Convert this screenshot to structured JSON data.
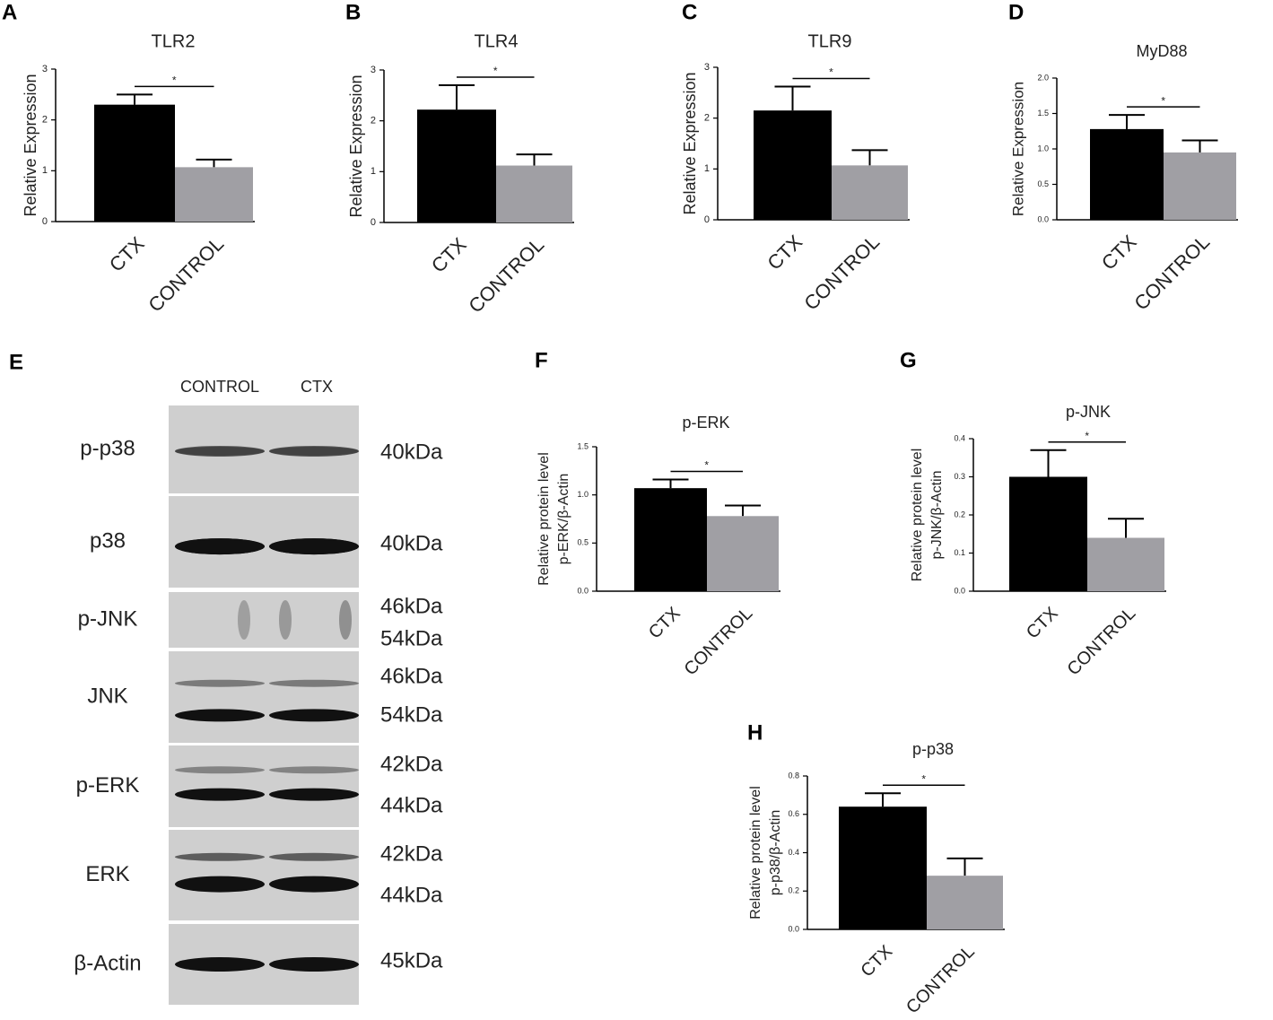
{
  "chart_data": [
    {
      "type": "bar",
      "panel": "A",
      "title": "TLR2",
      "ylabel": "Relative Expression",
      "categories": [
        "CTX",
        "CONTROL"
      ],
      "values": [
        2.3,
        1.07
      ],
      "errors": [
        0.2,
        0.15
      ],
      "colors": [
        "#000000",
        "#a09fa4"
      ],
      "annotation": "*",
      "ylim": [
        0,
        3
      ],
      "yticks": [
        0,
        1,
        2,
        3
      ]
    },
    {
      "type": "bar",
      "panel": "B",
      "title": "TLR4",
      "ylabel": "Relative Expression",
      "categories": [
        "CTX",
        "CONTROL"
      ],
      "values": [
        2.22,
        1.12
      ],
      "errors": [
        0.48,
        0.22
      ],
      "colors": [
        "#000000",
        "#a09fa4"
      ],
      "annotation": "*",
      "ylim": [
        0,
        3
      ],
      "yticks": [
        0,
        1,
        2,
        3
      ]
    },
    {
      "type": "bar",
      "panel": "C",
      "title": "TLR9",
      "ylabel": "Relative Expression",
      "categories": [
        "CTX",
        "CONTROL"
      ],
      "values": [
        2.15,
        1.07
      ],
      "errors": [
        0.47,
        0.3
      ],
      "colors": [
        "#000000",
        "#a09fa4"
      ],
      "annotation": "*",
      "ylim": [
        0,
        3
      ],
      "yticks": [
        0,
        1,
        2,
        3
      ]
    },
    {
      "type": "bar",
      "panel": "D",
      "title": "MyD88",
      "ylabel": "Relative Expression",
      "categories": [
        "CTX",
        "CONTROL"
      ],
      "values": [
        1.28,
        0.95
      ],
      "errors": [
        0.2,
        0.17
      ],
      "colors": [
        "#000000",
        "#a09fa4"
      ],
      "annotation": "*",
      "ylim": [
        0,
        2
      ],
      "yticks": [
        {
          "value": 0,
          "label": "0.0"
        },
        {
          "value": 0.5,
          "label": "0.5"
        },
        {
          "value": 1,
          "label": "1.0"
        },
        {
          "value": 1.5,
          "label": "1.5"
        },
        {
          "value": 2,
          "label": "2.0"
        }
      ]
    },
    {
      "type": "bar",
      "panel": "F",
      "title": "p-ERK",
      "ylabel": [
        "Relative protein level",
        "p-ERK/β-Actin"
      ],
      "categories": [
        "CTX",
        "CONTROL"
      ],
      "values": [
        1.07,
        0.78
      ],
      "errors": [
        0.09,
        0.11
      ],
      "colors": [
        "#000000",
        "#a09fa4"
      ],
      "annotation": "*",
      "ylim": [
        0,
        1.5
      ],
      "yticks": [
        {
          "value": 0,
          "label": "0.0"
        },
        0.5,
        {
          "value": 1,
          "label": "1.0"
        },
        1.5
      ]
    },
    {
      "type": "bar",
      "panel": "G",
      "title": "p-JNK",
      "ylabel": [
        "Relative protein level",
        "p-JNK/β-Actin"
      ],
      "categories": [
        "CTX",
        "CONTROL"
      ],
      "values": [
        0.3,
        0.14
      ],
      "errors": [
        0.07,
        0.05
      ],
      "colors": [
        "#000000",
        "#a09fa4"
      ],
      "annotation": "*",
      "ylim": [
        0,
        0.4
      ],
      "yticks": [
        {
          "value": 0,
          "label": "0.0"
        },
        0.1,
        0.2,
        0.3,
        0.4
      ]
    },
    {
      "type": "bar",
      "panel": "H",
      "title": "p-p38",
      "ylabel": [
        "Relative protein level",
        "p-p38/β-Actin"
      ],
      "categories": [
        "CTX",
        "CONTROL"
      ],
      "values": [
        0.64,
        0.28
      ],
      "errors": [
        0.07,
        0.09
      ],
      "colors": [
        "#000000",
        "#a09fa4"
      ],
      "annotation": "*",
      "ylim": [
        0,
        0.8
      ],
      "yticks": [
        {
          "value": 0,
          "label": "0.0"
        },
        0.2,
        0.4,
        0.6,
        0.8
      ]
    }
  ],
  "blot": {
    "panel": "E",
    "columns": [
      "CONTROL",
      "CTX"
    ],
    "rows": [
      {
        "label": "p-p38",
        "sizes": [
          "40kDa"
        ]
      },
      {
        "label": "p38",
        "sizes": [
          "40kDa"
        ]
      },
      {
        "label": "p-JNK",
        "sizes": [
          "46kDa",
          "54kDa"
        ]
      },
      {
        "label": "JNK",
        "sizes": [
          "46kDa",
          "54kDa"
        ]
      },
      {
        "label": "p-ERK",
        "sizes": [
          "42kDa",
          "44kDa"
        ]
      },
      {
        "label": "ERK",
        "sizes": [
          "42kDa",
          "44kDa"
        ]
      },
      {
        "label": "β-Actin",
        "sizes": [
          "45kDa"
        ]
      }
    ]
  }
}
